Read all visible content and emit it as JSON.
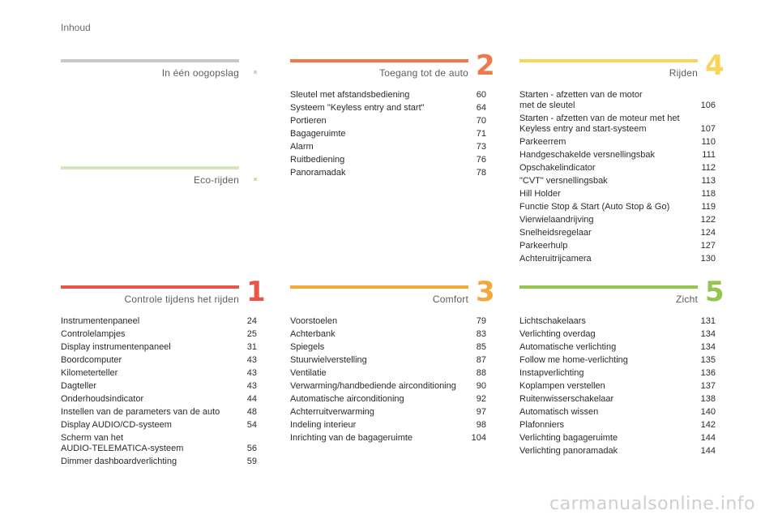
{
  "page_label": "Inhoud",
  "watermark": "carmanualsonline.info",
  "sections": [
    {
      "id": "overview",
      "title": "In één oogopslag",
      "number": "",
      "color": "#c8c8c8",
      "marker_color": "#d0d0d0",
      "items": []
    },
    {
      "id": "eco",
      "title": "Eco-rijden",
      "number": "",
      "color": "#d4e6bd",
      "marker_color": "#e3d9a8",
      "items": []
    },
    {
      "id": "access",
      "title": "Toegang tot de auto",
      "number": "2",
      "color": "#ee7a4c",
      "items": [
        {
          "text": "Sleutel met afstandsbediening",
          "page": "60"
        },
        {
          "text": "Systeem \"Keyless entry and start\"",
          "page": "64"
        },
        {
          "text": "Portieren",
          "page": "70"
        },
        {
          "text": "Bagageruimte",
          "page": "71"
        },
        {
          "text": "Alarm",
          "page": "73"
        },
        {
          "text": "Ruitbediening",
          "page": "76"
        },
        {
          "text": "Panoramadak",
          "page": "78"
        }
      ]
    },
    {
      "id": "driving",
      "title": "Rijden",
      "number": "4",
      "color": "#f8d45c",
      "items": [
        {
          "text": "Starten - afzetten van de motor\nmet de sleutel",
          "page": "106"
        },
        {
          "text": "Starten - afzetten van de moteur met het\nKeyless entry and start-systeem",
          "page": "107"
        },
        {
          "text": "Parkeerrem",
          "page": "110"
        },
        {
          "text": "Handgeschakelde versnellingsbak",
          "page": "111"
        },
        {
          "text": "Opschakelindicator",
          "page": "112"
        },
        {
          "text": "\"CVT\" versnellingsbak",
          "page": "113"
        },
        {
          "text": "Hill Holder",
          "page": "118"
        },
        {
          "text": "Functie Stop & Start (Auto Stop & Go)",
          "page": "119"
        },
        {
          "text": "Vierwielaandrijving",
          "page": "122"
        },
        {
          "text": "Snelheidsregelaar",
          "page": "124"
        },
        {
          "text": "Parkeerhulp",
          "page": "127"
        },
        {
          "text": "Achteruitrijcamera",
          "page": "130"
        }
      ]
    },
    {
      "id": "controls",
      "title": "Controle tijdens het rijden",
      "number": "1",
      "color": "#e8564a",
      "items": [
        {
          "text": "Instrumentenpaneel",
          "page": "24"
        },
        {
          "text": "Controlelampjes",
          "page": "25"
        },
        {
          "text": "Display instrumentenpaneel",
          "page": "31"
        },
        {
          "text": "Boordcomputer",
          "page": "43"
        },
        {
          "text": "Kilometerteller",
          "page": "43"
        },
        {
          "text": "Dagteller",
          "page": "43"
        },
        {
          "text": "Onderhoudsindicator",
          "page": "44"
        },
        {
          "text": "Instellen van de parameters van de auto",
          "page": "48"
        },
        {
          "text": "Display AUDIO/CD-systeem",
          "page": "54"
        },
        {
          "text": "Scherm van het\nAUDIO-TELEMATICA-systeem",
          "page": "56"
        },
        {
          "text": "Dimmer dashboardverlichting",
          "page": "59"
        }
      ]
    },
    {
      "id": "comfort",
      "title": "Comfort",
      "number": "3",
      "color": "#f2a93b",
      "items": [
        {
          "text": "Voorstoelen",
          "page": "79"
        },
        {
          "text": "Achterbank",
          "page": "83"
        },
        {
          "text": "Spiegels",
          "page": "85"
        },
        {
          "text": "Stuurwielverstelling",
          "page": "87"
        },
        {
          "text": "Ventilatie",
          "page": "88"
        },
        {
          "text": "Verwarming/handbediende airconditioning",
          "page": "90"
        },
        {
          "text": "Automatische airconditioning",
          "page": "92"
        },
        {
          "text": "Achterruitverwarming",
          "page": "97"
        },
        {
          "text": "Indeling interieur",
          "page": "98"
        },
        {
          "text": "Inrichting van de bagageruimte",
          "page": "104"
        }
      ]
    },
    {
      "id": "visibility",
      "title": "Zicht",
      "number": "5",
      "color": "#92c64e",
      "items": [
        {
          "text": "Lichtschakelaars",
          "page": "131"
        },
        {
          "text": "Verlichting overdag",
          "page": "134"
        },
        {
          "text": "Automatische verlichting",
          "page": "134"
        },
        {
          "text": "Follow me home-verlichting",
          "page": "135"
        },
        {
          "text": "Instapverlichting",
          "page": "136"
        },
        {
          "text": "Koplampen verstellen",
          "page": "137"
        },
        {
          "text": "Ruitenwisserschakelaar",
          "page": "138"
        },
        {
          "text": "Automatisch wissen",
          "page": "140"
        },
        {
          "text": "Plafonniers",
          "page": "142"
        },
        {
          "text": "Verlichting bagageruimte",
          "page": "144"
        },
        {
          "text": "Verlichting panoramadak",
          "page": "144"
        }
      ]
    }
  ]
}
